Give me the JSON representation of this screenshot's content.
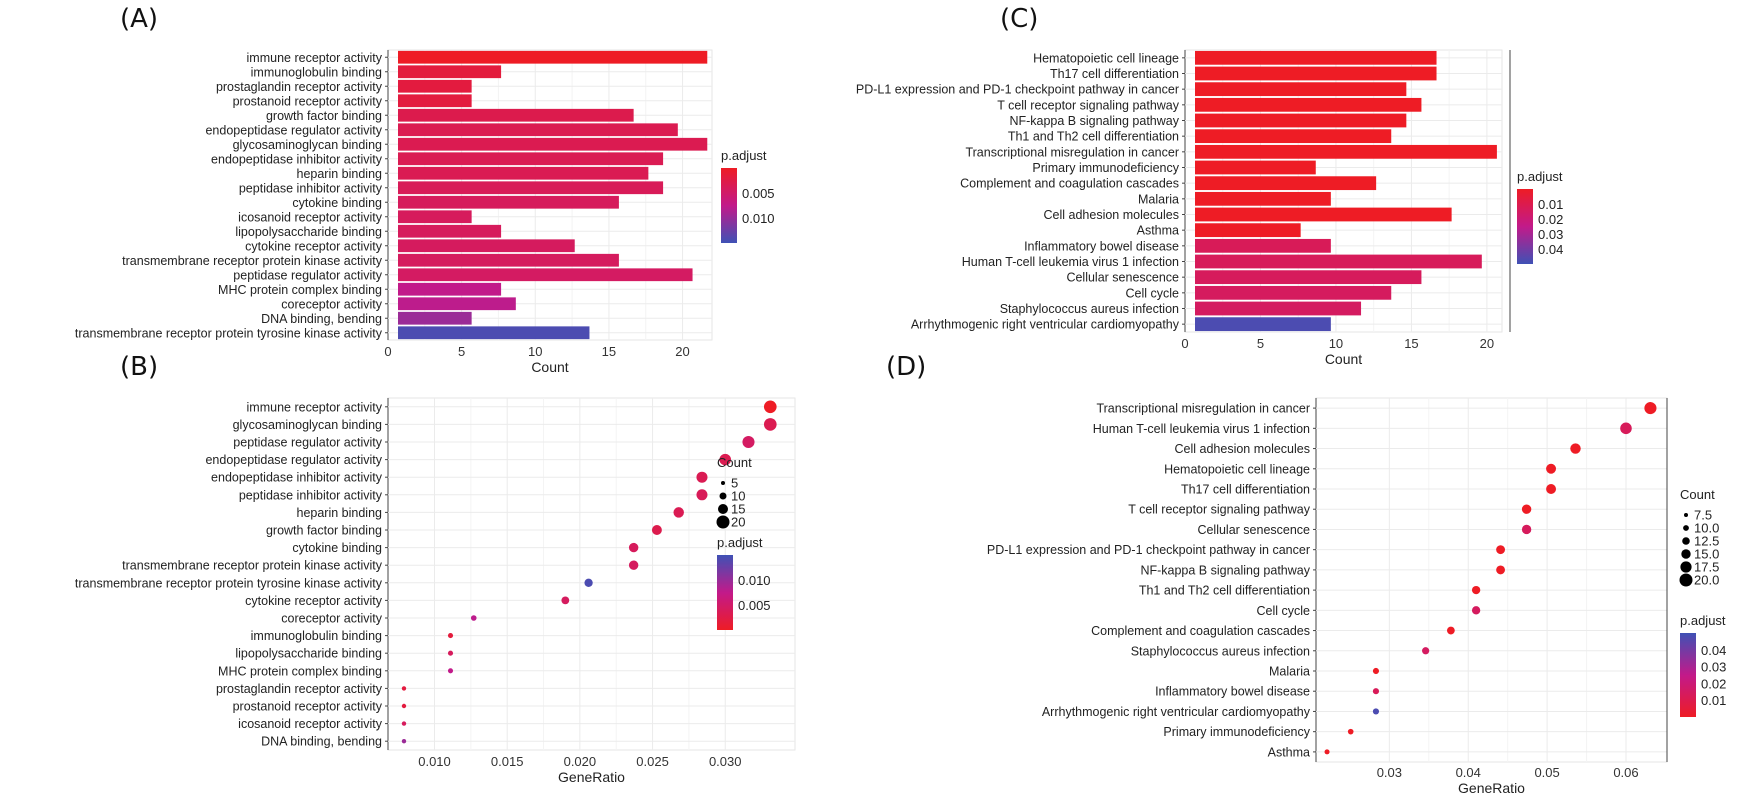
{
  "panels": [
    {
      "label": "(A)"
    },
    {
      "label": "(B)"
    },
    {
      "label": "(C)"
    },
    {
      "label": "(D)"
    }
  ],
  "chart_data": [
    {
      "id": "A",
      "type": "bar",
      "orientation": "horizontal",
      "title": "",
      "xlabel": "Count",
      "ylabel": "",
      "xlim": [
        0,
        22
      ],
      "xticks": [
        "0",
        "5",
        "10",
        "15",
        "20"
      ],
      "grid": true,
      "categories": [
        "immune receptor activity",
        "immunoglobulin binding",
        "prostaglandin receptor activity",
        "prostanoid receptor activity",
        "growth factor binding",
        "endopeptidase regulator activity",
        "glycosaminoglycan binding",
        "endopeptidase inhibitor activity",
        "heparin binding",
        "peptidase inhibitor activity",
        "cytokine binding",
        "icosanoid receptor activity",
        "lipopolysaccharide binding",
        "cytokine receptor activity",
        "transmembrane receptor protein kinase activity",
        "peptidase regulator activity",
        "MHC protein complex binding",
        "coreceptor activity",
        "DNA binding, bending",
        "transmembrane receptor protein tyrosine kinase activity"
      ],
      "values": [
        21,
        7,
        5,
        5,
        16,
        19,
        21,
        18,
        17,
        18,
        15,
        5,
        7,
        12,
        15,
        20,
        7,
        8,
        5,
        13
      ],
      "color_fraction": [
        0.0,
        0.12,
        0.13,
        0.13,
        0.2,
        0.22,
        0.22,
        0.23,
        0.23,
        0.25,
        0.27,
        0.27,
        0.27,
        0.28,
        0.28,
        0.3,
        0.5,
        0.52,
        0.65,
        0.95
      ],
      "legend": {
        "title": "p.adjust",
        "position": "right",
        "ticks": [
          "0.005",
          "0.010"
        ],
        "colors": [
          "#ee1c25",
          "#3f51b5"
        ]
      }
    },
    {
      "id": "B",
      "type": "scatter",
      "title": "",
      "xlabel": "GeneRatio",
      "ylabel": "",
      "xlim": [
        0.0068,
        0.0348
      ],
      "xticks": [
        "0.010",
        "0.015",
        "0.020",
        "0.025",
        "0.030"
      ],
      "grid": true,
      "categories": [
        "immune receptor activity",
        "glycosaminoglycan binding",
        "peptidase regulator activity",
        "endopeptidase regulator activity",
        "endopeptidase inhibitor activity",
        "peptidase inhibitor activity",
        "heparin binding",
        "growth factor binding",
        "cytokine binding",
        "transmembrane receptor protein kinase activity",
        "transmembrane receptor protein tyrosine kinase activity",
        "cytokine receptor activity",
        "coreceptor activity",
        "immunoglobulin binding",
        "lipopolysaccharide binding",
        "MHC protein complex binding",
        "prostaglandin receptor activity",
        "prostanoid receptor activity",
        "icosanoid receptor activity",
        "DNA binding, bending"
      ],
      "x": [
        0.0331,
        0.0331,
        0.0316,
        0.03,
        0.0284,
        0.0284,
        0.0268,
        0.0253,
        0.0237,
        0.0237,
        0.0206,
        0.019,
        0.0127,
        0.0111,
        0.0111,
        0.0111,
        0.0079,
        0.0079,
        0.0079,
        0.0079
      ],
      "count": [
        21,
        21,
        20,
        19,
        18,
        18,
        17,
        16,
        15,
        15,
        13,
        12,
        8,
        7,
        7,
        7,
        5,
        5,
        5,
        5
      ],
      "color_fraction": [
        0.0,
        0.22,
        0.3,
        0.22,
        0.23,
        0.25,
        0.23,
        0.2,
        0.27,
        0.28,
        0.95,
        0.28,
        0.52,
        0.12,
        0.27,
        0.5,
        0.13,
        0.13,
        0.27,
        0.65
      ],
      "legend": {
        "size_title": "Count",
        "size_ticks": [
          "5",
          "10",
          "15",
          "20"
        ],
        "color_title": "p.adjust",
        "color_ticks": [
          "0.010",
          "0.005"
        ],
        "colors": [
          "#3f51b5",
          "#ee1c25"
        ],
        "position": "right"
      }
    },
    {
      "id": "C",
      "type": "bar",
      "orientation": "horizontal",
      "title": "",
      "xlabel": "Count",
      "ylabel": "",
      "xlim": [
        0,
        21
      ],
      "xticks": [
        "0",
        "5",
        "10",
        "15",
        "20"
      ],
      "grid": true,
      "categories": [
        "Hematopoietic cell lineage",
        "Th17 cell differentiation",
        "PD-L1 expression and PD-1 checkpoint pathway in cancer",
        "T cell receptor signaling pathway",
        "NF-kappa B signaling pathway",
        "Th1 and Th2 cell differentiation",
        "Transcriptional misregulation in cancer",
        "Primary immunodeficiency",
        "Complement and coagulation cascades",
        "Malaria",
        "Cell adhesion molecules",
        "Asthma",
        "Inflammatory bowel disease",
        "Human T-cell leukemia virus 1 infection",
        "Cellular senescence",
        "Cell cycle",
        "Staphylococcus aureus infection",
        "Arrhythmogenic right ventricular cardiomyopathy"
      ],
      "values": [
        16,
        16,
        14,
        15,
        14,
        13,
        20,
        8,
        12,
        9,
        17,
        7,
        9,
        19,
        15,
        13,
        11,
        9
      ],
      "color_fraction": [
        0.0,
        0.0,
        0.0,
        0.0,
        0.0,
        0.0,
        0.0,
        0.0,
        0.0,
        0.0,
        0.0,
        0.0,
        0.25,
        0.26,
        0.27,
        0.28,
        0.29,
        0.95
      ],
      "legend": {
        "title": "p.adjust",
        "position": "right",
        "ticks": [
          "0.01",
          "0.02",
          "0.03",
          "0.04"
        ],
        "colors": [
          "#ee1c25",
          "#3f51b5"
        ]
      }
    },
    {
      "id": "D",
      "type": "scatter",
      "title": "",
      "xlabel": "GeneRatio",
      "ylabel": "",
      "xlim": [
        0.0207,
        0.0652
      ],
      "xticks": [
        "0.03",
        "0.04",
        "0.05",
        "0.06"
      ],
      "grid": true,
      "categories": [
        "Transcriptional misregulation in cancer",
        "Human T-cell leukemia virus 1 infection",
        "Cell adhesion molecules",
        "Hematopoietic cell lineage",
        "Th17 cell differentiation",
        "T cell receptor signaling pathway",
        "Cellular senescence",
        "PD-L1 expression and PD-1 checkpoint pathway in cancer",
        "NF-kappa B signaling pathway",
        "Th1 and Th2 cell differentiation",
        "Cell cycle",
        "Complement and coagulation cascades",
        "Staphylococcus aureus infection",
        "Malaria",
        "Inflammatory bowel disease",
        "Arrhythmogenic right ventricular cardiomyopathy",
        "Primary immunodeficiency",
        "Asthma"
      ],
      "x": [
        0.0631,
        0.06,
        0.0536,
        0.0505,
        0.0505,
        0.0474,
        0.0474,
        0.0441,
        0.0441,
        0.041,
        0.041,
        0.0378,
        0.0346,
        0.0283,
        0.0283,
        0.0283,
        0.0251,
        0.0221
      ],
      "count": [
        20,
        19,
        17,
        16,
        16,
        15,
        15,
        14,
        14,
        13,
        13,
        12,
        11,
        9,
        9,
        9,
        8,
        7
      ],
      "color_fraction": [
        0.0,
        0.26,
        0.0,
        0.0,
        0.0,
        0.0,
        0.27,
        0.0,
        0.0,
        0.0,
        0.28,
        0.0,
        0.29,
        0.0,
        0.25,
        0.95,
        0.0,
        0.0
      ],
      "legend": {
        "size_title": "Count",
        "size_ticks": [
          "7.5",
          "10.0",
          "12.5",
          "15.0",
          "17.5",
          "20.0"
        ],
        "color_title": "p.adjust",
        "color_ticks": [
          "0.04",
          "0.03",
          "0.02",
          "0.01"
        ],
        "colors": [
          "#3f51b5",
          "#ee1c25"
        ],
        "position": "right"
      }
    }
  ]
}
